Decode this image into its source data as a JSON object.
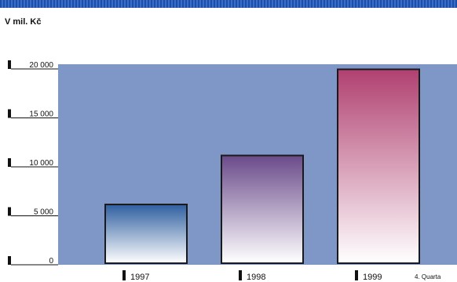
{
  "chart_data": {
    "type": "bar",
    "title": "",
    "ylabel": "V mil. Kč",
    "xlabel": "",
    "categories": [
      "1997",
      "1998",
      "1999"
    ],
    "values": [
      6000,
      11000,
      19800
    ],
    "ylim": [
      0,
      20000
    ],
    "yticks": [
      0,
      5000,
      10000,
      15000,
      20000
    ],
    "ytick_labels": [
      "0",
      "5 000",
      "10 000",
      "15 000",
      "20 000"
    ],
    "annotations": [
      "4. Quarta"
    ],
    "grid": false,
    "colors": {
      "plot_background": "#7f97c6",
      "bar_1997": "#2f5fa0",
      "bar_1998": "#6a4a8a",
      "bar_1999": "#b04070",
      "bar_light": "#ffffff",
      "stripe": "#1e4fa8"
    }
  }
}
